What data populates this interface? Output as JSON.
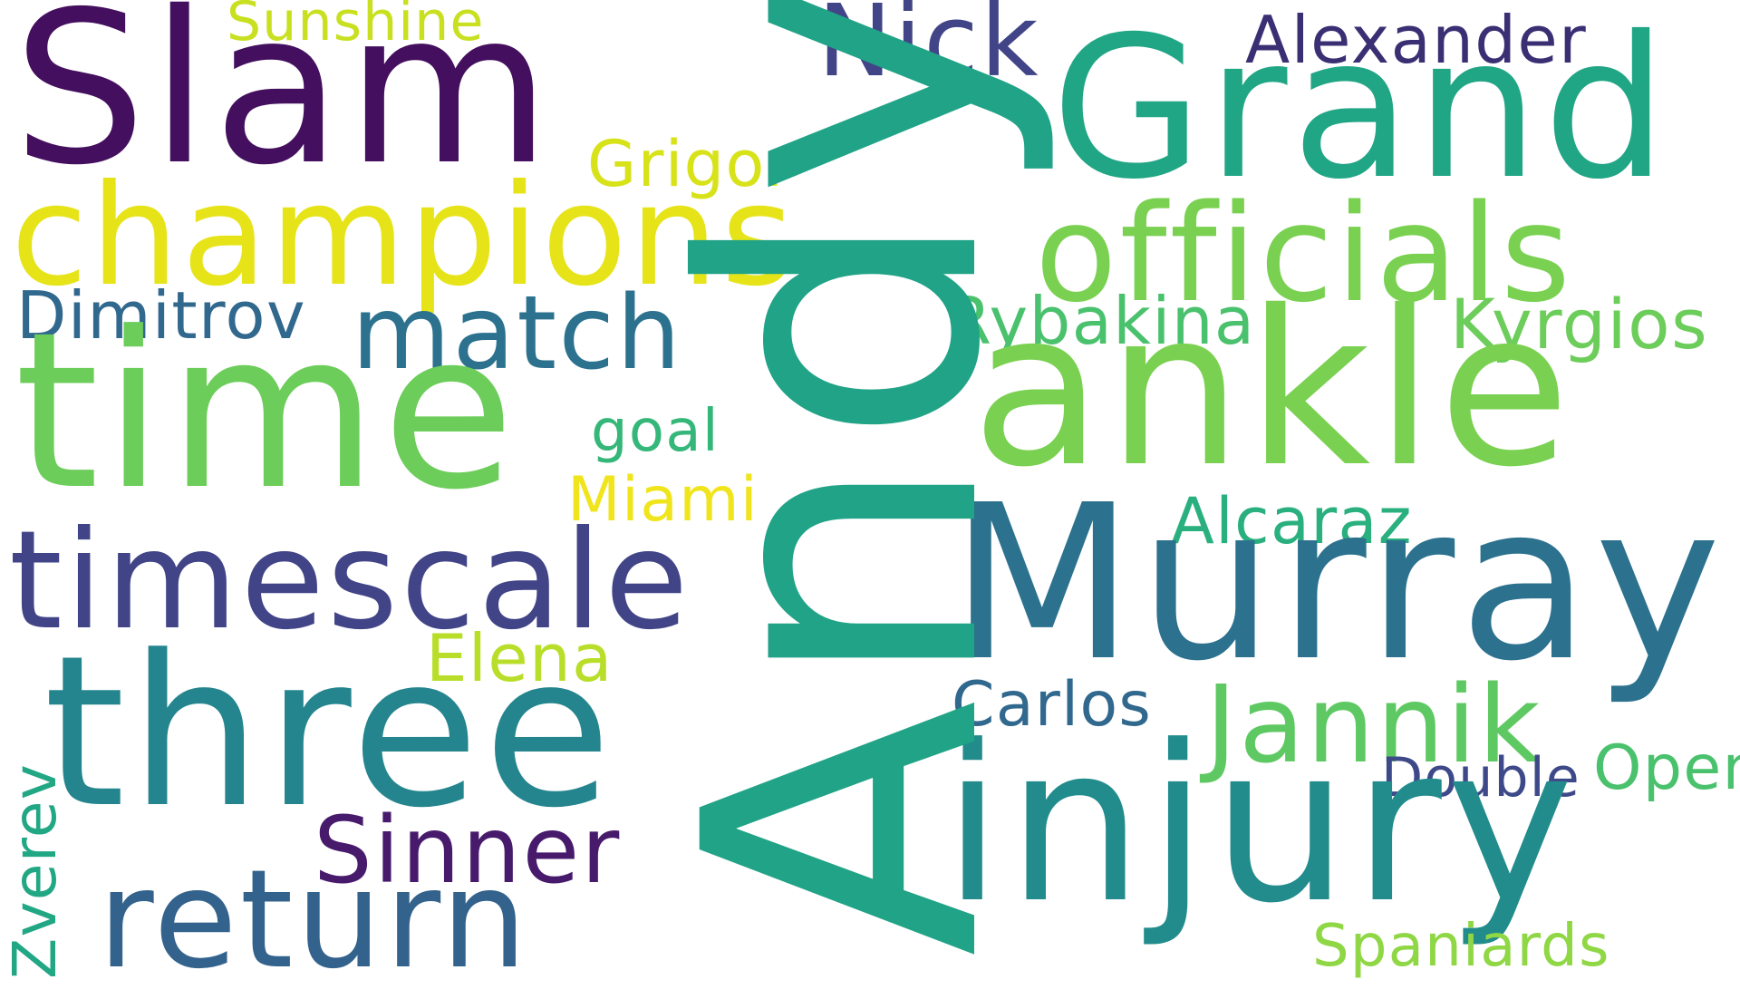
{
  "words": {
    "sunshine": {
      "text": "Sunshine",
      "color": "#c8e020"
    },
    "slam": {
      "text": "Slam",
      "color": "#440f5e"
    },
    "nick": {
      "text": "Nick",
      "color": "#414487"
    },
    "alexander": {
      "text": "Alexander",
      "color": "#3b2f74"
    },
    "grand": {
      "text": "Grand",
      "color": "#21a685"
    },
    "grigor": {
      "text": "Grigor",
      "color": "#d8e219"
    },
    "champions": {
      "text": "champions",
      "color": "#e6e419"
    },
    "officials": {
      "text": "officials",
      "color": "#7ad151"
    },
    "dimitrov": {
      "text": "Dimitrov",
      "color": "#31688e"
    },
    "rybakina": {
      "text": "Rybakina",
      "color": "#4ac16d"
    },
    "kyrgios": {
      "text": "Kyrgios",
      "color": "#6ccd5a"
    },
    "match": {
      "text": "match",
      "color": "#2c728e"
    },
    "ankle": {
      "text": "ankle",
      "color": "#7ad151"
    },
    "time": {
      "text": "time",
      "color": "#6ccd5a"
    },
    "goal": {
      "text": "goal",
      "color": "#35b779"
    },
    "miami": {
      "text": "Miami",
      "color": "#f0e51c"
    },
    "alcaraz": {
      "text": "Alcaraz",
      "color": "#2ab07f"
    },
    "timescale": {
      "text": "timescale",
      "color": "#414487"
    },
    "murray": {
      "text": "Murray",
      "color": "#2c728e"
    },
    "elena": {
      "text": "Elena",
      "color": "#b8de29"
    },
    "carlos": {
      "text": "Carlos",
      "color": "#31688e"
    },
    "three": {
      "text": "three",
      "color": "#25858e"
    },
    "jannik": {
      "text": "Jannik",
      "color": "#5ec962"
    },
    "open": {
      "text": "Open",
      "color": "#4ac16d"
    },
    "double": {
      "text": "Double",
      "color": "#3e4989"
    },
    "sinner": {
      "text": "Sinner",
      "color": "#481a6c"
    },
    "return": {
      "text": "return",
      "color": "#33638d"
    },
    "injury": {
      "text": "injury",
      "color": "#228c8d"
    },
    "spaniards": {
      "text": "Spaniards",
      "color": "#8fd744"
    },
    "andy": {
      "text": "Andy",
      "color": "#20a386"
    },
    "zverev": {
      "text": "Zverev",
      "color": "#22a785"
    }
  }
}
